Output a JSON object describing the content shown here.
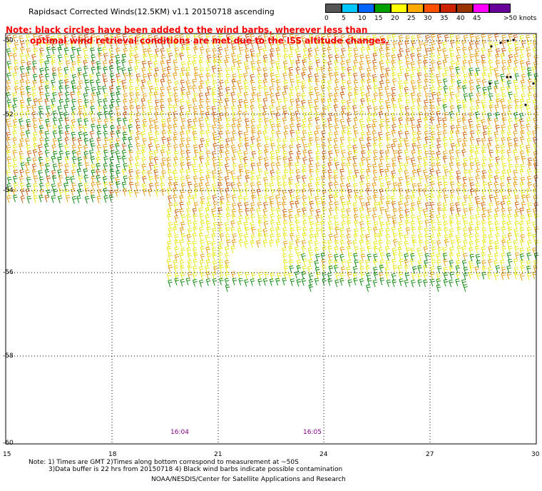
{
  "header": {
    "title": "Rapidsact Corrected Winds(12.5KM) v1.1 20150718 ascending",
    "note_line1": "Note: black circles have been added to the wind barbs, wherever less than",
    "note_line2": "optimal wind retrieval conditions are met due to the ISS altitude changes."
  },
  "legend": {
    "units": "knots",
    "entries": [
      {
        "label": "0",
        "color": "#555555"
      },
      {
        "label": "5",
        "color": "#00c8ff"
      },
      {
        "label": "10",
        "color": "#0064ff"
      },
      {
        "label": "15",
        "color": "#00a000"
      },
      {
        "label": "20",
        "color": "#ffff00"
      },
      {
        "label": "25",
        "color": "#ffaa00"
      },
      {
        "label": "30",
        "color": "#ff5000"
      },
      {
        "label": "35",
        "color": "#cc2200"
      },
      {
        "label": "40",
        "color": "#993300"
      },
      {
        "label": "45",
        "color": "#ff00ff"
      },
      {
        "label": ">50 knots",
        "color": "#660099"
      }
    ]
  },
  "axes": {
    "lat_labels": [
      "-50",
      "-52",
      "-54",
      "-56",
      "-58",
      "-60"
    ],
    "lon_labels": [
      "15",
      "18",
      "21",
      "24",
      "27",
      "30"
    ]
  },
  "times": [
    {
      "label": "16:04"
    },
    {
      "label": "16:05"
    }
  ],
  "footer": {
    "line1": "Note: 1) Times are GMT 2)Times along bottom correspond to measurement at ~50S",
    "line2": "3)Data buffer is 22 hrs from 20150718 4) Black wind barbs indicate possible contamination",
    "line3": "NOAA/NESDIS/Center for Satellite Applications and Research"
  },
  "colors": {
    "calm_green": "#008000",
    "light_yellow": "#e6e600",
    "moderate_orange": "#e69500",
    "strong_red": "#c85000",
    "gridline": "#000000"
  }
}
